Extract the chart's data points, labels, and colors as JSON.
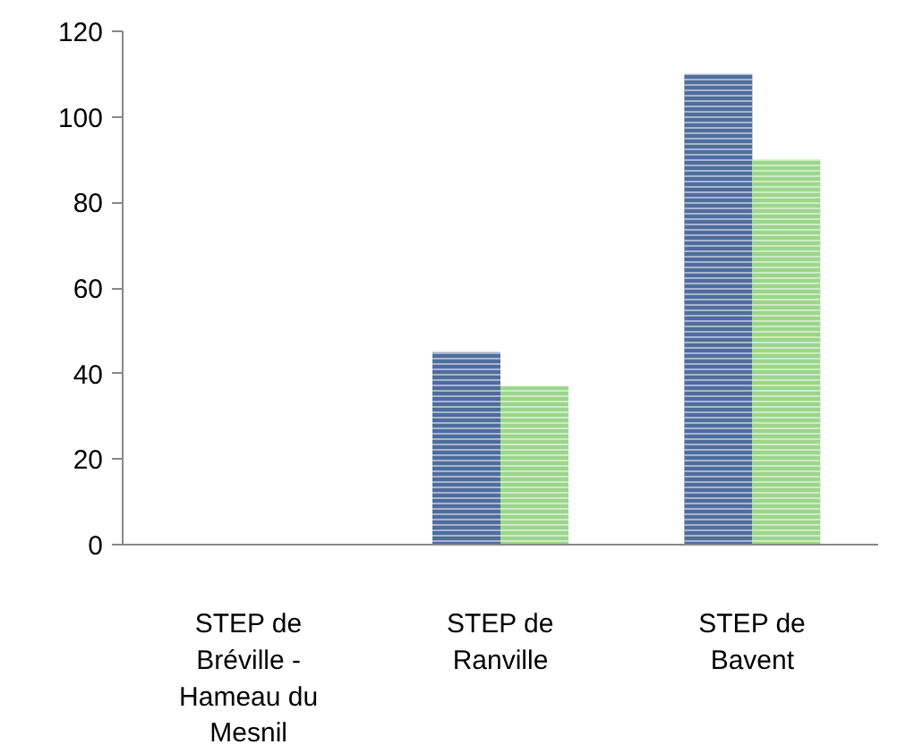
{
  "chart_data": {
    "type": "bar",
    "categories": [
      "STEP de Bréville - Hameau du Mesnil",
      "STEP de Ranville",
      "STEP de Bavent"
    ],
    "series": [
      {
        "color": "#4f6d9c",
        "values": [
          0,
          45,
          110
        ]
      },
      {
        "color": "#9cd68c",
        "values": [
          0,
          37,
          90
        ]
      }
    ],
    "ylim": [
      0,
      120
    ],
    "yticks": [
      0,
      20,
      40,
      60,
      80,
      100,
      120
    ],
    "grid": false
  }
}
